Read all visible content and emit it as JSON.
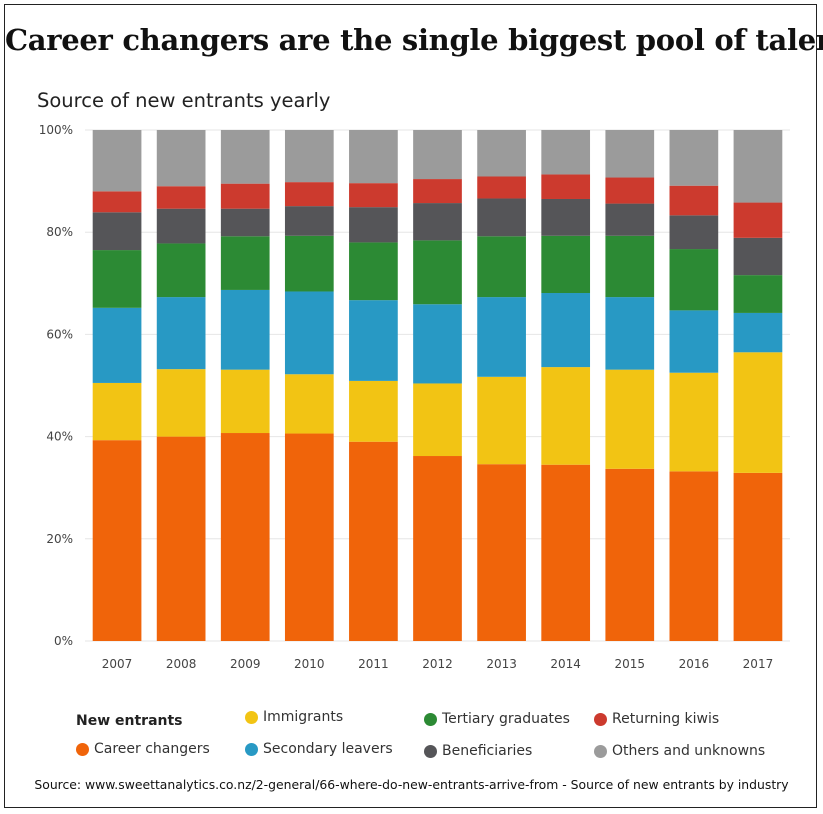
{
  "title": "Career changers are the single biggest pool of talent",
  "source": "Source: www.sweettanalytics.co.nz/2-general/66-where-do-new-entrants-arrive-from - Source of new entrants by industry",
  "chart_data": {
    "type": "bar",
    "stacked": true,
    "title": "Source of new entrants yearly",
    "xlabel": "",
    "ylabel": "",
    "ylim": [
      0,
      100
    ],
    "yticks": [
      "0%",
      "20%",
      "40%",
      "60%",
      "80%",
      "100%"
    ],
    "grid": true,
    "legend_title": "New entrants",
    "legend_position": "bottom",
    "categories": [
      "2007",
      "2008",
      "2009",
      "2010",
      "2011",
      "2012",
      "2013",
      "2014",
      "2015",
      "2016",
      "2017"
    ],
    "series": [
      {
        "name": "Career changers",
        "color": "#f0640a",
        "values": [
          39.3,
          40.0,
          40.7,
          40.6,
          39.0,
          36.2,
          34.6,
          34.5,
          33.7,
          33.2,
          32.9
        ]
      },
      {
        "name": "Immigrants",
        "color": "#f2c414",
        "values": [
          11.2,
          13.2,
          12.4,
          11.6,
          11.9,
          14.2,
          17.1,
          19.1,
          19.4,
          19.3,
          23.6
        ]
      },
      {
        "name": "Secondary leavers",
        "color": "#2899c4",
        "values": [
          14.7,
          14.1,
          15.6,
          16.2,
          15.8,
          15.5,
          15.6,
          14.5,
          14.2,
          12.2,
          7.7
        ]
      },
      {
        "name": "Tertiary graduates",
        "color": "#2c8a34",
        "values": [
          11.3,
          10.5,
          10.5,
          10.9,
          11.3,
          12.5,
          11.9,
          11.2,
          12.0,
          12.0,
          7.4
        ]
      },
      {
        "name": "Beneficiaries",
        "color": "#555558",
        "values": [
          7.4,
          6.8,
          5.4,
          5.8,
          6.9,
          7.3,
          7.4,
          7.2,
          6.3,
          6.6,
          7.3
        ]
      },
      {
        "name": "Returning kiwis",
        "color": "#cc3a2e",
        "values": [
          4.1,
          4.4,
          4.9,
          4.7,
          4.7,
          4.7,
          4.3,
          4.8,
          5.1,
          5.8,
          6.9
        ]
      },
      {
        "name": "Others and unknowns",
        "color": "#9b9b9b",
        "values": [
          12.0,
          11.0,
          10.5,
          10.2,
          10.4,
          9.6,
          9.1,
          8.7,
          9.3,
          10.9,
          14.2
        ]
      }
    ]
  }
}
